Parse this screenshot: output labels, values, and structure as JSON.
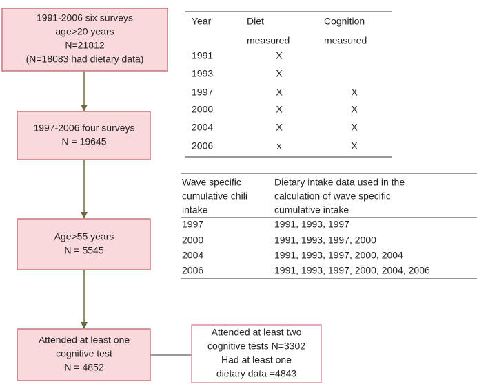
{
  "flow": {
    "boxes": [
      {
        "lines": [
          "1991-2006 six surveys",
          "age>20 years",
          "N=21812",
          "(N=18083 had dietary data)"
        ]
      },
      {
        "lines": [
          "1997-2006 four surveys",
          "N = 19645"
        ]
      },
      {
        "lines": [
          "Age>55 years",
          "N = 5545"
        ]
      },
      {
        "lines": [
          "Attended at least one",
          "cognitive test",
          "N = 4852"
        ]
      },
      {
        "lines": [
          "Attended at least two",
          "cognitive tests  N=3302",
          "Had at least one",
          "dietary data =4843"
        ]
      }
    ]
  },
  "table1": {
    "header": {
      "year": "Year",
      "diet": [
        "Diet",
        "measured"
      ],
      "cognition": [
        "Cognition",
        "measured"
      ]
    },
    "rows": [
      {
        "year": "1991",
        "diet": "X"
      },
      {
        "year": "1993",
        "diet": "X"
      },
      {
        "year": "1997",
        "diet": "X",
        "cognition": "X"
      },
      {
        "year": "2000",
        "diet": "X",
        "cognition": "X"
      },
      {
        "year": "2004",
        "diet": "X",
        "cognition": "X"
      },
      {
        "year": "2006",
        "diet": "x",
        "cognition": "X"
      }
    ]
  },
  "table2": {
    "header": [
      [
        "Wave specific",
        "cumulative chili",
        "intake"
      ],
      [
        "Dietary intake  data used in the",
        "calculation of wave specific",
        "cumulative intake"
      ]
    ],
    "rows": [
      [
        "1997",
        "1991, 1993, 1997"
      ],
      [
        "2000",
        "1991, 1993, 1997, 2000"
      ],
      [
        "2004",
        "1991, 1993, 1997, 2000, 2004"
      ],
      [
        "2006",
        "1991, 1993, 1997, 2000, 2004, 2006"
      ]
    ]
  }
}
